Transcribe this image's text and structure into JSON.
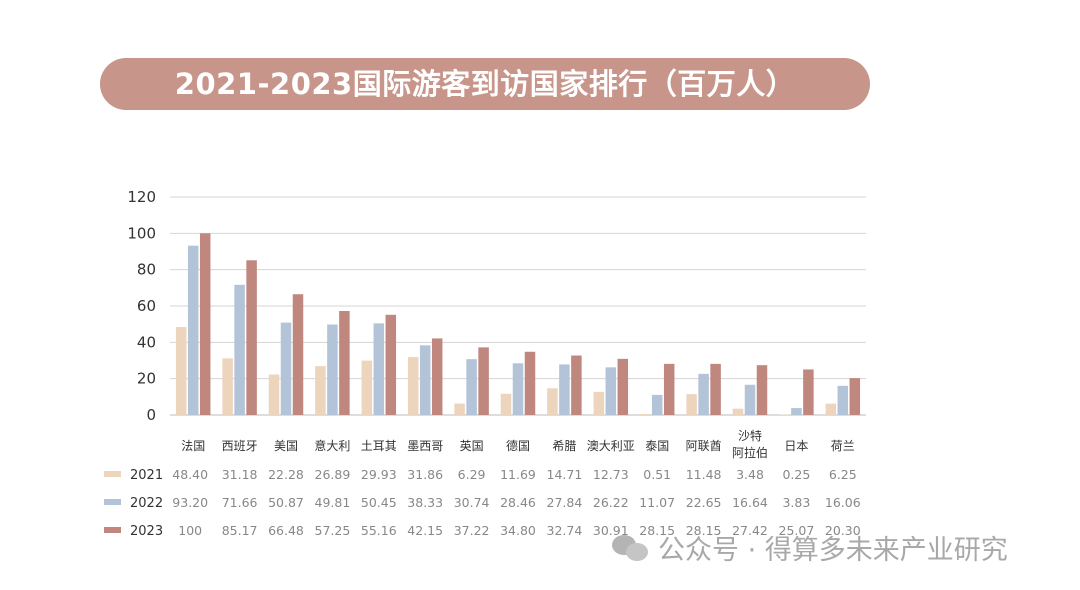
{
  "title": "2021-2023国际游客到访国家排行（百万人）",
  "watermark": "公众号 · 得算多未来产业研究",
  "chart_data": {
    "type": "bar",
    "title": "2021-2023国际游客到访国家排行（百万人）",
    "categories": [
      "法国",
      "西班牙",
      "美国",
      "意大利",
      "土耳其",
      "墨西哥",
      "英国",
      "德国",
      "希腊",
      "澳大利亚",
      "泰国",
      "阿联酋",
      "沙特\n阿拉伯",
      "日本",
      "荷兰"
    ],
    "series": [
      {
        "name": "2021",
        "color": "#ecd4bd",
        "values": [
          48.4,
          31.18,
          22.28,
          26.89,
          29.93,
          31.86,
          6.29,
          11.69,
          14.71,
          12.73,
          0.51,
          11.48,
          3.48,
          0.25,
          6.25
        ],
        "labels": [
          "48.40",
          "31.18",
          "22.28",
          "26.89",
          "29.93",
          "31.86",
          "6.29",
          "11.69",
          "14.71",
          "12.73",
          "0.51",
          "11.48",
          "3.48",
          "0.25",
          "6.25"
        ]
      },
      {
        "name": "2022",
        "color": "#b3c3d8",
        "values": [
          93.2,
          71.66,
          50.87,
          49.81,
          50.45,
          38.33,
          30.74,
          28.46,
          27.84,
          26.22,
          11.07,
          22.65,
          16.64,
          3.83,
          16.06
        ],
        "labels": [
          "93.20",
          "71.66",
          "50.87",
          "49.81",
          "50.45",
          "38.33",
          "30.74",
          "28.46",
          "27.84",
          "26.22",
          "11.07",
          "22.65",
          "16.64",
          "3.83",
          "16.06"
        ]
      },
      {
        "name": "2023",
        "color": "#c0877e",
        "values": [
          100,
          85.17,
          66.48,
          57.25,
          55.16,
          42.15,
          37.22,
          34.8,
          32.74,
          30.91,
          28.15,
          28.15,
          27.42,
          25.07,
          20.3
        ],
        "labels": [
          "100",
          "85.17",
          "66.48",
          "57.25",
          "55.16",
          "42.15",
          "37.22",
          "34.80",
          "32.74",
          "30.91",
          "28.15",
          "28.15",
          "27.42",
          "25.07",
          "20.30"
        ]
      }
    ],
    "ylim": [
      0,
      120
    ],
    "yticks": [
      "0",
      "20",
      "40",
      "60",
      "80",
      "100",
      "120"
    ],
    "grid": true,
    "legend": "data table below chart"
  }
}
